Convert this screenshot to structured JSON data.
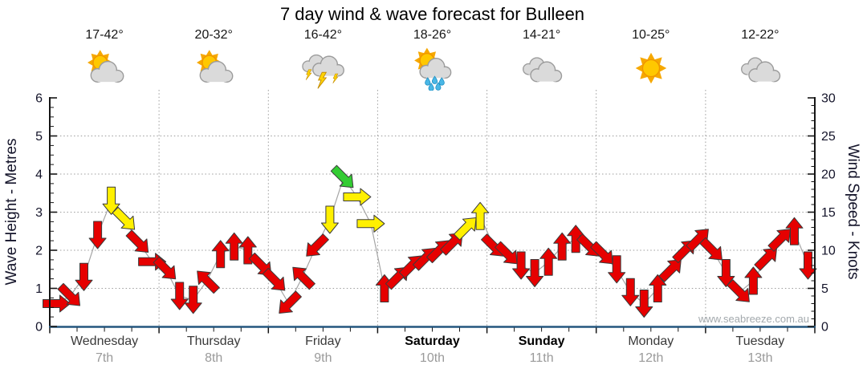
{
  "title": "7 day wind & wave forecast for Bulleen",
  "watermark": "www.seabreeze.com.au",
  "days": [
    {
      "name": "Wednesday",
      "date": "7th",
      "temp": "17-42°",
      "icon": "sun-cloud",
      "weekend": false
    },
    {
      "name": "Thursday",
      "date": "8th",
      "temp": "20-32°",
      "icon": "sun-cloud",
      "weekend": false
    },
    {
      "name": "Friday",
      "date": "9th",
      "temp": "16-42°",
      "icon": "thunderstorm",
      "weekend": false
    },
    {
      "name": "Saturday",
      "date": "10th",
      "temp": "18-26°",
      "icon": "sun-shower",
      "weekend": true
    },
    {
      "name": "Sunday",
      "date": "11th",
      "temp": "14-21°",
      "icon": "cloudy",
      "weekend": true
    },
    {
      "name": "Monday",
      "date": "12th",
      "temp": "10-25°",
      "icon": "sunny",
      "weekend": false
    },
    {
      "name": "Tuesday",
      "date": "13th",
      "temp": "12-22°",
      "icon": "cloudy",
      "weekend": false
    }
  ],
  "chart_data": {
    "type": "line",
    "marker_style": "wind-direction-arrow",
    "title": "7 day wind & wave forecast for Bulleen",
    "x": {
      "days": 7,
      "points_per_day": 8,
      "interval_hours": 3
    },
    "y_left": {
      "label": "Wave Height - Metres",
      "range": [
        0,
        6
      ],
      "ticks": [
        0,
        1,
        2,
        3,
        4,
        5,
        6
      ]
    },
    "y_right": {
      "label": "Wind Speed - Knots",
      "range": [
        0,
        30
      ],
      "ticks": [
        0,
        5,
        10,
        15,
        20,
        25,
        30
      ]
    },
    "grid": {
      "h_lines_knots": [
        5,
        10,
        15,
        20,
        25
      ],
      "v_lines": "day-boundaries",
      "style": "dotted"
    },
    "wind_speed_knots": [
      3,
      4,
      6.5,
      12,
      16.5,
      14,
      11,
      8.5,
      7.5,
      4,
      3.5,
      6,
      9.5,
      10.5,
      10,
      8,
      6,
      3,
      6.5,
      10.5,
      14,
      19.5,
      17,
      13.5,
      5,
      6.5,
      8,
      9,
      10,
      11,
      13,
      14.5,
      10.5,
      9.5,
      8,
      7,
      8.5,
      10.5,
      11.5,
      10.5,
      9.5,
      7.5,
      4.5,
      3,
      5,
      7.5,
      10,
      11.5,
      10,
      7,
      4.5,
      6,
      9,
      11.5,
      12.5,
      8
    ],
    "wind_direction_deg_screen": [
      90,
      135,
      180,
      180,
      180,
      135,
      135,
      90,
      135,
      180,
      180,
      315,
      0,
      0,
      0,
      135,
      135,
      225,
      315,
      225,
      180,
      135,
      90,
      90,
      0,
      45,
      45,
      45,
      45,
      45,
      45,
      0,
      135,
      135,
      180,
      180,
      0,
      0,
      0,
      135,
      135,
      180,
      180,
      180,
      0,
      45,
      45,
      45,
      135,
      180,
      135,
      0,
      45,
      45,
      0,
      180
    ],
    "arrow_colors": {
      "red": "#e60000",
      "yellow": "#fff000",
      "green": "#33cc33",
      "thresholds_knots": {
        "yellow_from": 13,
        "green_from": 19
      }
    },
    "colors": {
      "arrow_outline": "#3b3b3b",
      "trace_line": "#a5a5a5",
      "gridline": "#9c9c9c",
      "spine": "#151515",
      "bottom_axis": "#24567e",
      "tick_label": "#14142a",
      "watermark": "#a3a9ad"
    }
  }
}
